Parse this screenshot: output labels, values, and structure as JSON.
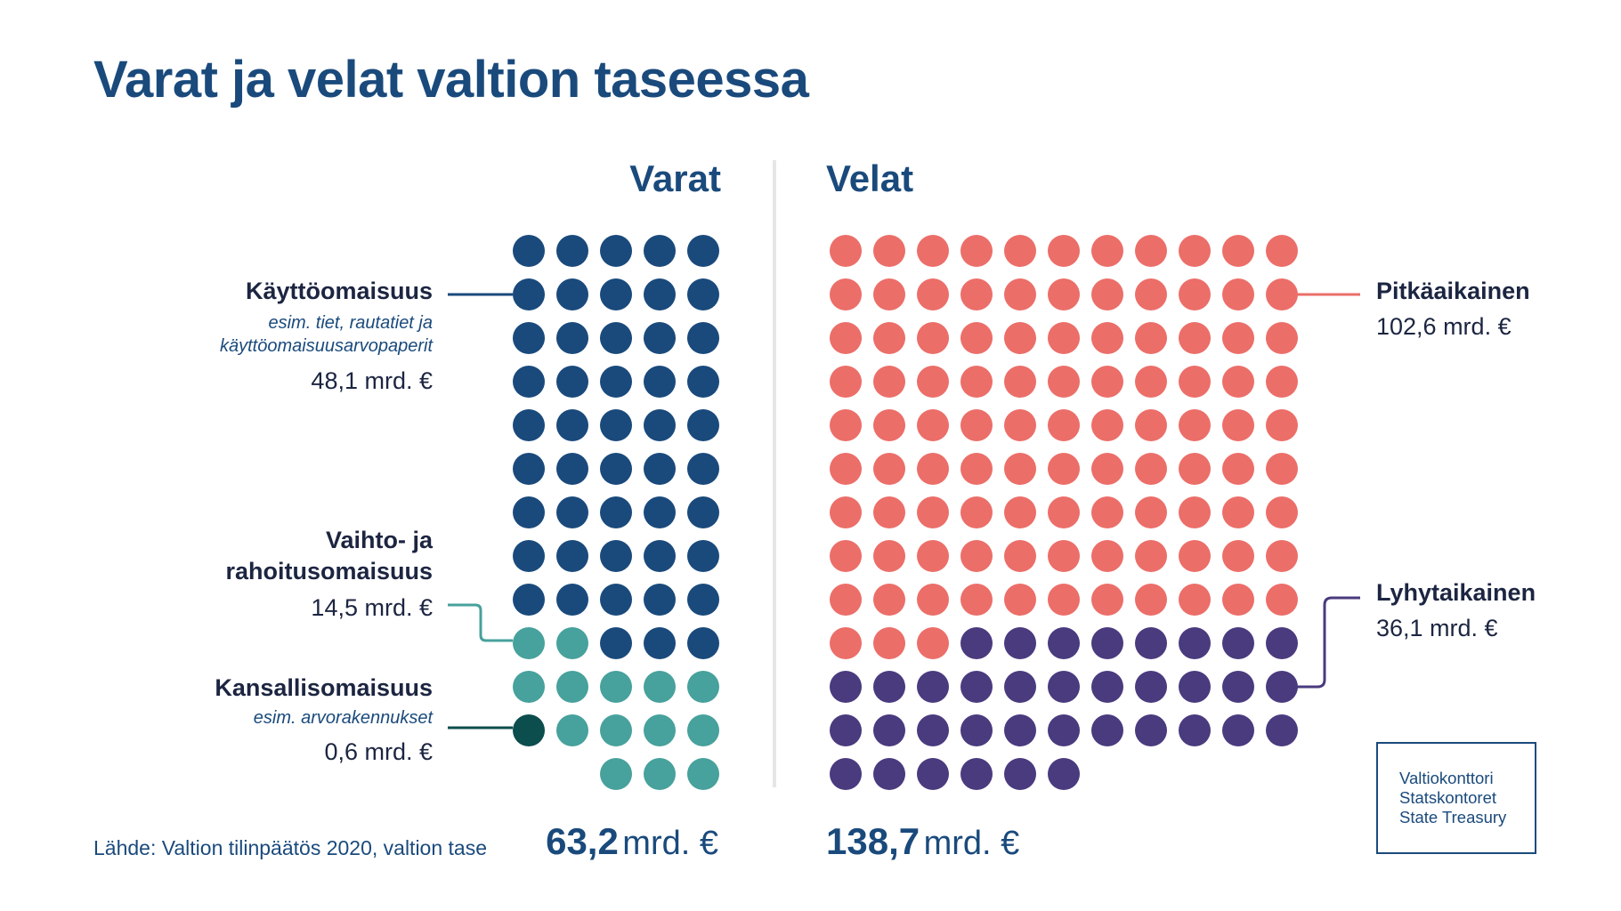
{
  "title": "Varat ja velat valtion taseessa",
  "source": "Lähde: Valtion tilinpäätös 2020, valtion tase",
  "colors": {
    "title": "#1a4a7c",
    "kayttoomaisuus": "#1a4a7c",
    "vaihto": "#47a19c",
    "kansallis": "#0c4d4d",
    "pitkaaikainen": "#ec6e69",
    "lyhytaikainen": "#4a3a7e"
  },
  "assets": {
    "heading": "Varat",
    "total_value": "63,2",
    "total_unit": "mrd. €",
    "labels": {
      "kaytto_name": "Käyttöomaisuus",
      "kaytto_note_1": "esim. tiet, rautatiet ja",
      "kaytto_note_2": "käyttöomaisuusarvopaperit",
      "kaytto_value": "48,1 mrd. €",
      "vaihto_name_1": "Vaihto- ja",
      "vaihto_name_2": "rahoitusomaisuus",
      "vaihto_value": "14,5 mrd. €",
      "kansallis_name": "Kansallisomaisuus",
      "kansallis_note": "esim. arvorakennukset",
      "kansallis_value": "0,6 mrd. €"
    }
  },
  "liabilities": {
    "heading": "Velat",
    "total_value": "138,7",
    "total_unit": "mrd. €",
    "labels": {
      "pitka_name": "Pitkäaikainen",
      "pitka_value": "102,6 mrd. €",
      "lyhyt_name": "Lyhytaikainen",
      "lyhyt_value": "36,1 mrd. €"
    }
  },
  "logo": {
    "line1": "Valtiokonttori",
    "line2": "Statskontoret",
    "line3": "State Treasury"
  },
  "chart_data": [
    {
      "type": "dot-matrix",
      "name": "Varat",
      "unit": "mrd. €",
      "total": 63.2,
      "segments": [
        {
          "category": "Käyttöomaisuus",
          "value": 48.1,
          "dots": 47
        },
        {
          "category": "Vaihto- ja rahoitusomaisuus",
          "value": 14.5,
          "dots": 15
        },
        {
          "category": "Kansallisomaisuus",
          "value": 0.6,
          "dots": 1
        }
      ]
    },
    {
      "type": "dot-matrix",
      "name": "Velat",
      "unit": "mrd. €",
      "total": 138.7,
      "segments": [
        {
          "category": "Pitkäaikainen",
          "value": 102.6,
          "dots": 102
        },
        {
          "category": "Lyhytaikainen",
          "value": 36.1,
          "dots": 36
        }
      ]
    }
  ]
}
